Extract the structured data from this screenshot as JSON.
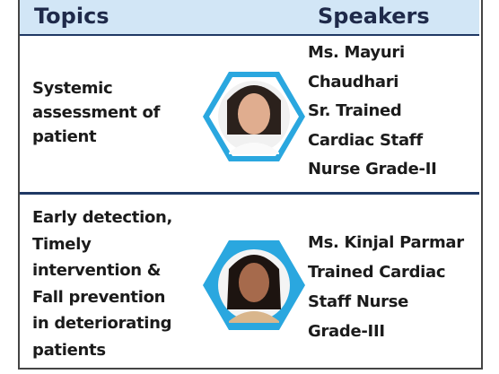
{
  "header": {
    "topics": "Topics",
    "speakers": "Speakers"
  },
  "rows": [
    {
      "topic": [
        "Systemic",
        "assessment of",
        "patient"
      ],
      "speaker": [
        "Ms. Mayuri",
        "Chaudhari",
        "Sr. Trained",
        "Cardiac Staff",
        "Nurse Grade-II"
      ]
    },
    {
      "topic": [
        "Early detection,",
        "Timely",
        "intervention &",
        "Fall prevention",
        "in deteriorating",
        "patients"
      ],
      "speaker": [
        "Ms. Kinjal Parmar",
        "Trained Cardiac",
        "Staff Nurse",
        "Grade-III"
      ]
    }
  ]
}
